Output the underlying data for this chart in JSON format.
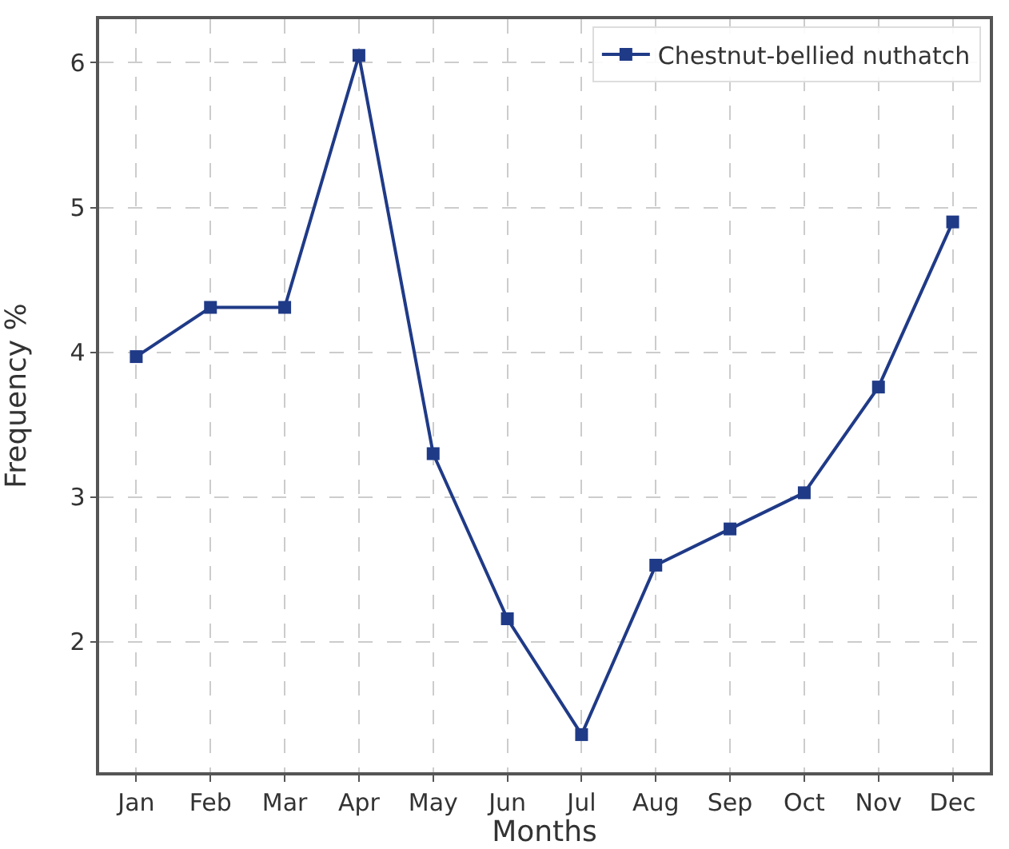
{
  "chart_data": {
    "type": "line",
    "xlabel": "Months",
    "ylabel": "Frequency %",
    "categories": [
      "Jan",
      "Feb",
      "Mar",
      "Apr",
      "May",
      "Jun",
      "Jul",
      "Aug",
      "Sep",
      "Oct",
      "Nov",
      "Dec"
    ],
    "series": [
      {
        "name": "Chestnut-bellied nuthatch",
        "color": "#1f3a87",
        "values": [
          3.97,
          4.31,
          4.31,
          6.05,
          3.3,
          2.16,
          1.36,
          2.53,
          2.78,
          3.03,
          3.76,
          4.9
        ]
      }
    ],
    "ylim": [
      1.1,
      6.3
    ],
    "yticks": [
      2,
      3,
      4,
      5,
      6
    ],
    "grid": true,
    "legend": "top right",
    "marker": "square",
    "line_style": "solid"
  }
}
